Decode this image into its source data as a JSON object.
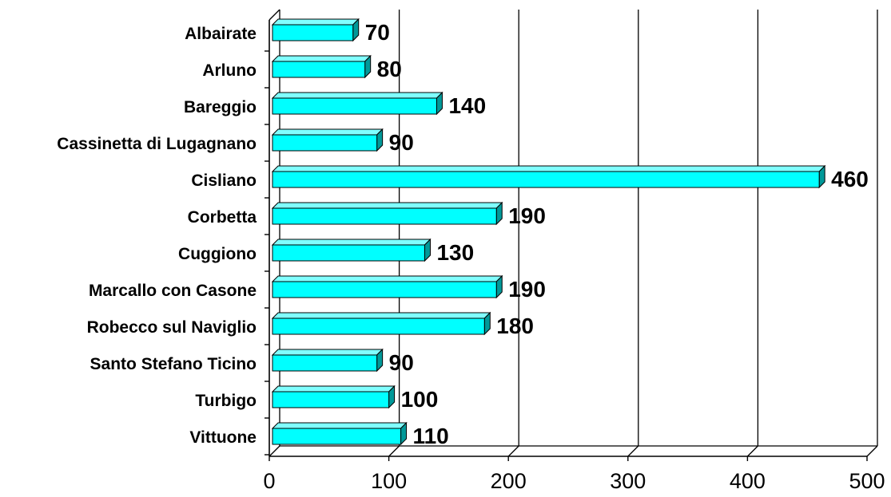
{
  "chart_data": {
    "type": "bar",
    "orientation": "horizontal",
    "three_d": true,
    "categories": [
      "Albairate",
      "Arluno",
      "Bareggio",
      "Cassinetta di Lugagnano",
      "Cisliano",
      "Corbetta",
      "Cuggiono",
      "Marcallo con Casone",
      "Robecco sul Naviglio",
      "Santo Stefano Ticino",
      "Turbigo",
      "Vittuone"
    ],
    "values": [
      70,
      80,
      140,
      90,
      460,
      190,
      130,
      190,
      180,
      90,
      100,
      110
    ],
    "data_labels": [
      "70",
      "80",
      "140",
      "90",
      "460",
      "190",
      "130",
      "190",
      "180",
      "90",
      "100",
      "110"
    ],
    "x_ticks": [
      "0",
      "100",
      "200",
      "300",
      "400",
      "500"
    ],
    "xlim": [
      0,
      500
    ],
    "title": "",
    "xlabel": "",
    "ylabel": "",
    "grid": "vertical",
    "legend": "none",
    "colors": {
      "bar_front": "#00ffff",
      "bar_top": "#80ffff",
      "bar_side": "#009999",
      "bar_edge": "#000000",
      "grid": "#000000"
    }
  }
}
